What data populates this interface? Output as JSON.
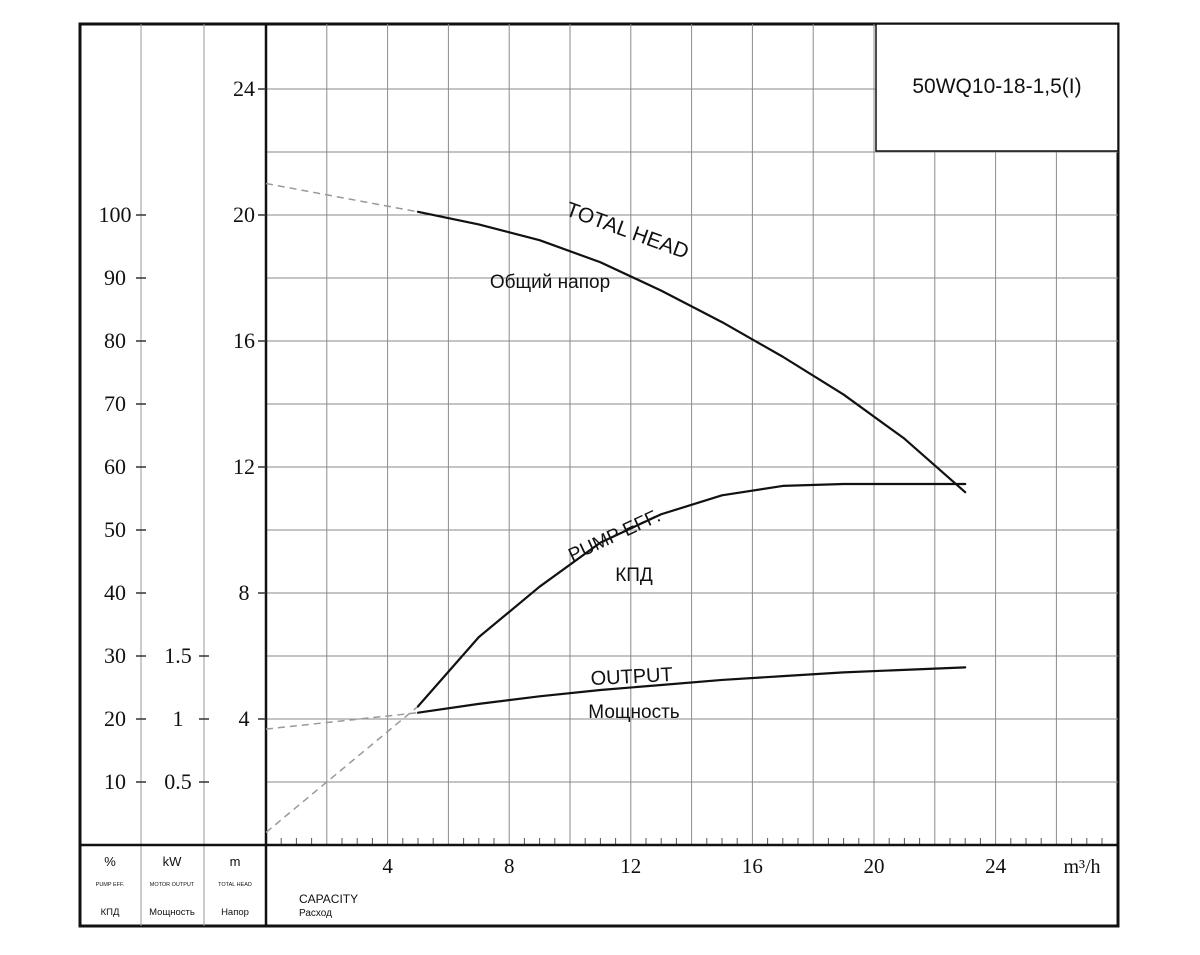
{
  "chart_data": {
    "type": "line",
    "model": "50WQ10-18-1,5(I)",
    "xlim": [
      0,
      28
    ],
    "x_ticks": [
      4,
      8,
      12,
      16,
      20,
      24
    ],
    "x_unit": "m³/h",
    "x_label": "CAPACITY",
    "x_label_ru": "Расход",
    "axes": {
      "percent": {
        "unit": "%",
        "label_en": "PUMP EFF.",
        "label_ru": "КПД",
        "ticks": [
          10,
          20,
          30,
          40,
          50,
          60,
          70,
          80,
          90,
          100
        ]
      },
      "power": {
        "unit": "kW",
        "label_en": "MOTOR OUTPUT",
        "label_ru": "Мощность",
        "ticks": [
          0.5,
          1,
          1.5
        ]
      },
      "head": {
        "unit": "m",
        "label_en": "TOTAL HEAD",
        "label_ru": "Напор",
        "ylim": [
          0,
          26
        ],
        "ticks": [
          4,
          8,
          12,
          16,
          20,
          24
        ]
      }
    },
    "series": [
      {
        "name": "TOTAL HEAD",
        "name_ru": "Общий напор",
        "axis": "head",
        "x": [
          5,
          7,
          9,
          11,
          13,
          15,
          17,
          19,
          21,
          23
        ],
        "y": [
          20.1,
          19.7,
          19.2,
          18.5,
          17.6,
          16.6,
          15.5,
          14.3,
          12.9,
          11.2
        ],
        "dashed_x": [
          0,
          5
        ],
        "dashed_y": [
          21.0,
          20.1
        ]
      },
      {
        "name": "PUMP EFF.",
        "name_ru": "КПД",
        "axis": "percent",
        "x": [
          5,
          7,
          9,
          11,
          13,
          15,
          17,
          19,
          21,
          23
        ],
        "y": [
          22,
          33,
          41,
          48,
          52.5,
          55.5,
          57,
          57.3,
          57.3,
          57.3
        ],
        "dashed_x": [
          0,
          5
        ],
        "dashed_y": [
          2,
          22
        ]
      },
      {
        "name": "OUTPUT",
        "name_ru": "Мощность",
        "axis": "power",
        "x": [
          5,
          7,
          9,
          11,
          13,
          15,
          17,
          19,
          21,
          23
        ],
        "y": [
          1.05,
          1.12,
          1.18,
          1.23,
          1.27,
          1.31,
          1.34,
          1.37,
          1.39,
          1.41
        ],
        "dashed_x": [
          0,
          5
        ],
        "dashed_y": [
          0.92,
          1.05
        ]
      }
    ]
  }
}
